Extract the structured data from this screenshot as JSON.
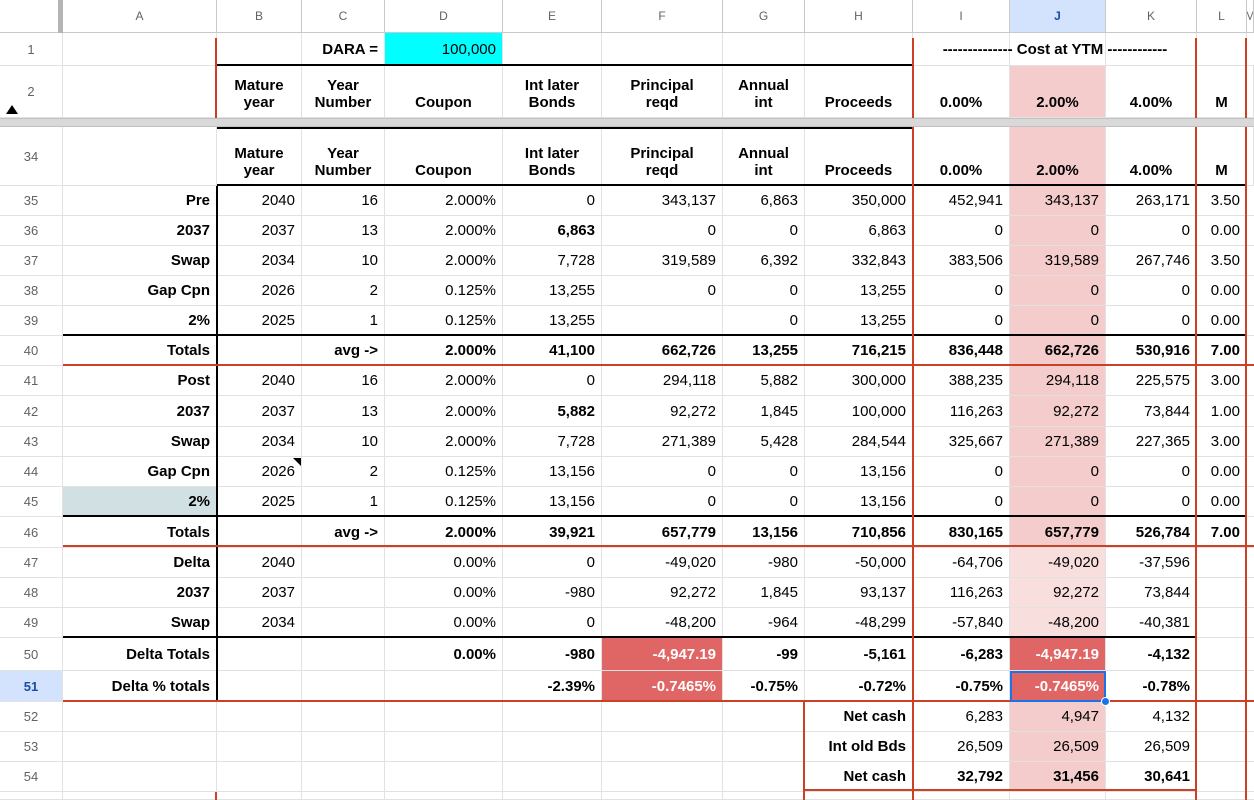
{
  "sheet": {
    "column_letters": [
      "A",
      "B",
      "C",
      "D",
      "E",
      "F",
      "G",
      "H",
      "I",
      "J",
      "K",
      "L",
      "M"
    ],
    "frozen_row_numbers": [
      "1",
      "2"
    ],
    "selected_cell": "J51",
    "selected_cell_value": "-0.7465%",
    "row1": {
      "dara_label": "DARA =",
      "dara_value": "100,000",
      "cost_at_ytm": "-------------- Cost at YTM ------------"
    },
    "header_labels": [
      "",
      "Mature\nyear",
      "Year\nNumber",
      "Coupon",
      "Int later\nBonds",
      "Principal\nreqd",
      "Annual\nint",
      "Proceeds",
      "0.00%",
      "2.00%",
      "4.00%",
      "M"
    ],
    "rows": [
      {
        "n": "34",
        "type": "header",
        "cells": [
          "",
          "",
          "",
          "",
          "",
          "",
          "",
          "",
          "",
          "",
          "",
          ""
        ]
      },
      {
        "n": "35",
        "cells": [
          "Pre",
          "2040",
          "16",
          "2.000%",
          "0",
          "343,137",
          "6,863",
          "350,000",
          "452,941",
          "343,137",
          "263,171",
          "3.50"
        ]
      },
      {
        "n": "36",
        "cells": [
          "2037",
          "2037",
          "13",
          "2.000%",
          "6,863",
          "0",
          "0",
          "6,863",
          "0",
          "0",
          "0",
          "0.00"
        ]
      },
      {
        "n": "37",
        "cells": [
          "Swap",
          "2034",
          "10",
          "2.000%",
          "7,728",
          "319,589",
          "6,392",
          "332,843",
          "383,506",
          "319,589",
          "267,746",
          "3.50"
        ]
      },
      {
        "n": "38",
        "cells": [
          "Gap Cpn",
          "2026",
          "2",
          "0.125%",
          "13,255",
          "0",
          "0",
          "13,255",
          "0",
          "0",
          "0",
          "0.00"
        ]
      },
      {
        "n": "39",
        "cells": [
          "2%",
          "2025",
          "1",
          "0.125%",
          "13,255",
          "",
          "0",
          "13,255",
          "0",
          "0",
          "0",
          "0.00"
        ]
      },
      {
        "n": "40",
        "cells": [
          "Totals",
          "",
          "avg ->",
          "2.000%",
          "41,100",
          "662,726",
          "13,255",
          "716,215",
          "836,448",
          "662,726",
          "530,916",
          "7.00"
        ]
      },
      {
        "n": "41",
        "cells": [
          "Post",
          "2040",
          "16",
          "2.000%",
          "0",
          "294,118",
          "5,882",
          "300,000",
          "388,235",
          "294,118",
          "225,575",
          "3.00"
        ]
      },
      {
        "n": "42",
        "cells": [
          "2037",
          "2037",
          "13",
          "2.000%",
          "5,882",
          "92,272",
          "1,845",
          "100,000",
          "116,263",
          "92,272",
          "73,844",
          "1.00"
        ]
      },
      {
        "n": "43",
        "cells": [
          "Swap",
          "2034",
          "10",
          "2.000%",
          "7,728",
          "271,389",
          "5,428",
          "284,544",
          "325,667",
          "271,389",
          "227,365",
          "3.00"
        ]
      },
      {
        "n": "44",
        "cells": [
          "Gap Cpn",
          "2026",
          "2",
          "0.125%",
          "13,156",
          "0",
          "0",
          "13,156",
          "0",
          "0",
          "0",
          "0.00"
        ]
      },
      {
        "n": "45",
        "cells": [
          "2%",
          "2025",
          "1",
          "0.125%",
          "13,156",
          "0",
          "0",
          "13,156",
          "0",
          "0",
          "0",
          "0.00"
        ]
      },
      {
        "n": "46",
        "cells": [
          "Totals",
          "",
          "avg ->",
          "2.000%",
          "39,921",
          "657,779",
          "13,156",
          "710,856",
          "830,165",
          "657,779",
          "526,784",
          "7.00"
        ]
      },
      {
        "n": "47",
        "cells": [
          "Delta",
          "2040",
          "",
          "0.00%",
          "0",
          "-49,020",
          "-980",
          "-50,000",
          "-64,706",
          "-49,020",
          "-37,596",
          ""
        ]
      },
      {
        "n": "48",
        "cells": [
          "2037",
          "2037",
          "",
          "0.00%",
          "-980",
          "92,272",
          "1,845",
          "93,137",
          "116,263",
          "92,272",
          "73,844",
          ""
        ]
      },
      {
        "n": "49",
        "cells": [
          "Swap",
          "2034",
          "",
          "0.00%",
          "0",
          "-48,200",
          "-964",
          "-48,299",
          "-57,840",
          "-48,200",
          "-40,381",
          ""
        ]
      },
      {
        "n": "50",
        "cells": [
          "Delta Totals",
          "",
          "",
          "0.00%",
          "-980",
          "-4,947.19",
          "-99",
          "-5,161",
          "-6,283",
          "-4,947.19",
          "-4,132",
          ""
        ]
      },
      {
        "n": "51",
        "cells": [
          "Delta % totals",
          "",
          "",
          "",
          "-2.39%",
          "-0.7465%",
          "-0.75%",
          "-0.72%",
          "-0.75%",
          "-0.7465%",
          "-0.78%",
          ""
        ]
      },
      {
        "n": "52",
        "cells": [
          "",
          "",
          "",
          "",
          "",
          "",
          "",
          "Net cash",
          "6,283",
          "4,947",
          "4,132",
          ""
        ]
      },
      {
        "n": "53",
        "cells": [
          "",
          "",
          "",
          "",
          "",
          "",
          "",
          "Int old Bds",
          "26,509",
          "26,509",
          "26,509",
          ""
        ]
      },
      {
        "n": "54",
        "cells": [
          "",
          "",
          "",
          "",
          "",
          "",
          "",
          "Net cash",
          "32,792",
          "31,456",
          "30,641",
          ""
        ]
      }
    ],
    "colors": {
      "accent_selection": "#1a73e8",
      "selected_header_bg": "#d3e3fd",
      "highlight_column_bg": "#f4cccc",
      "alert_cell_bg": "#e06666",
      "dara_value_bg": "#00ffff",
      "box_border": "#cc4125",
      "label_45_bg": "#d0e0e3"
    }
  }
}
